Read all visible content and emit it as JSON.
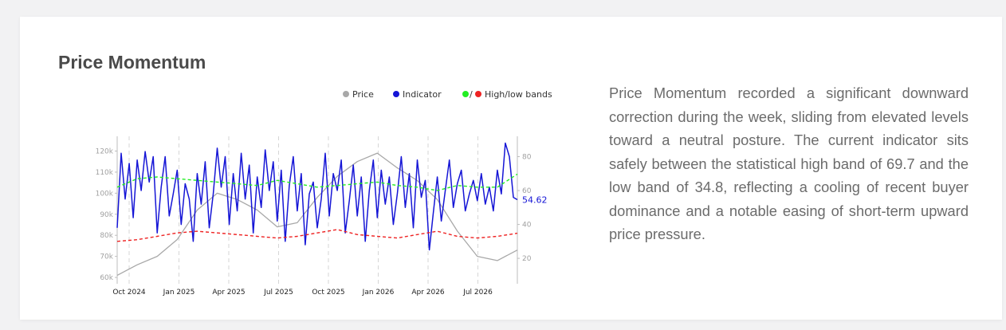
{
  "card": {
    "title": "Price Momentum",
    "description": "Price Momentum recorded a significant downward correction during the week, sliding from elevated levels toward a neutral posture. The current indicator sits safely between the statistical high band of 69.7 and the low band of 34.8, reflecting a cooling of recent buyer dominance and a notable easing of short-term upward price pressure."
  },
  "chart_data": {
    "type": "line",
    "legend": {
      "placement": "top-right",
      "items": [
        {
          "label": "Price",
          "color": "#a8a8a8"
        },
        {
          "label": "Indicator",
          "color": "#1515d6"
        },
        {
          "label": "High/low bands",
          "colors": [
            "#22ee22",
            "#ee2222"
          ]
        }
      ]
    },
    "x_ticks": [
      "Oct 2024",
      "Jan 2025",
      "Apr 2025",
      "Jul 2025",
      "Oct 2025",
      "Jan 2026",
      "Apr 2026",
      "Jul 2026"
    ],
    "y_left": {
      "ticks": [
        "60k",
        "70k",
        "80k",
        "90k",
        "100k",
        "110k",
        "120k"
      ],
      "values": [
        60000,
        70000,
        80000,
        90000,
        100000,
        110000,
        120000
      ],
      "range": [
        57000,
        127000
      ]
    },
    "y_right": {
      "ticks": [
        "20",
        "40",
        "60",
        "80"
      ],
      "values": [
        20,
        40,
        60,
        80
      ],
      "range": [
        5,
        92
      ]
    },
    "current_value_label": "54.62",
    "current_value": 54.62,
    "grid": "vertical-dashed",
    "colors": {
      "price": "#a8a8a8",
      "indicator": "#1515d6",
      "high_band": "#22ee22",
      "low_band": "#ee2222",
      "current_label": "#1515d6"
    },
    "series": [
      {
        "name": "Price",
        "axis": "left",
        "x": [
          0,
          5,
          10,
          15,
          20,
          25,
          30,
          35,
          40,
          45,
          50,
          55,
          60,
          65,
          70,
          75,
          80,
          85,
          90,
          95,
          100
        ],
        "values": [
          61000,
          66000,
          70000,
          78000,
          92000,
          100000,
          97000,
          92000,
          84000,
          86000,
          98000,
          108000,
          115000,
          119000,
          112000,
          106000,
          97000,
          82000,
          70000,
          68000,
          73000
        ]
      },
      {
        "name": "Indicator",
        "axis": "right",
        "x": [
          0,
          1,
          2,
          3,
          4,
          5,
          6,
          7,
          8,
          9,
          10,
          11,
          12,
          13,
          14,
          15,
          16,
          17,
          18,
          19,
          20,
          21,
          22,
          23,
          24,
          25,
          26,
          27,
          28,
          29,
          30,
          31,
          32,
          33,
          34,
          35,
          36,
          37,
          38,
          39,
          40,
          41,
          42,
          43,
          44,
          45,
          46,
          47,
          48,
          49,
          50,
          51,
          52,
          53,
          54,
          55,
          56,
          57,
          58,
          59,
          60,
          61,
          62,
          63,
          64,
          65,
          66,
          67,
          68,
          69,
          70,
          71,
          72,
          73,
          74,
          75,
          76,
          77,
          78,
          79,
          80,
          81,
          82,
          83,
          84,
          85,
          86,
          87,
          88,
          89,
          90,
          91,
          92,
          93,
          94,
          95,
          96,
          97,
          98,
          99,
          100
        ],
        "values": [
          38,
          82,
          55,
          76,
          44,
          78,
          60,
          83,
          65,
          80,
          35,
          62,
          80,
          45,
          58,
          72,
          40,
          64,
          55,
          30,
          70,
          52,
          77,
          38,
          58,
          85,
          62,
          80,
          40,
          70,
          48,
          82,
          55,
          75,
          35,
          68,
          50,
          84,
          60,
          77,
          42,
          72,
          30,
          63,
          80,
          48,
          70,
          28,
          58,
          65,
          38,
          55,
          82,
          45,
          70,
          60,
          78,
          35,
          54,
          75,
          45,
          68,
          30,
          60,
          78,
          44,
          72,
          52,
          68,
          40,
          58,
          80,
          50,
          70,
          38,
          78,
          56,
          66,
          25,
          47,
          68,
          42,
          60,
          78,
          50,
          64,
          72,
          48,
          58,
          66,
          54,
          70,
          52,
          62,
          48,
          72,
          58,
          88,
          80,
          56,
          54.62
        ]
      },
      {
        "name": "High band",
        "axis": "right",
        "x": [
          0,
          5,
          10,
          15,
          20,
          25,
          30,
          35,
          40,
          45,
          50,
          55,
          60,
          65,
          70,
          75,
          80,
          85,
          90,
          95,
          100
        ],
        "values": [
          62,
          67,
          68,
          67,
          66,
          65,
          64,
          63,
          66,
          64,
          62,
          63,
          64,
          65,
          63,
          62,
          60,
          63,
          62,
          62,
          69.7
        ]
      },
      {
        "name": "Low band",
        "axis": "right",
        "x": [
          0,
          5,
          10,
          15,
          20,
          25,
          30,
          35,
          40,
          45,
          50,
          55,
          60,
          65,
          70,
          75,
          80,
          85,
          90,
          95,
          100
        ],
        "values": [
          30,
          31,
          33,
          35,
          36,
          35,
          34,
          33,
          32,
          33,
          35,
          37,
          34,
          33,
          32,
          34,
          36,
          33,
          32,
          33,
          34.8
        ]
      }
    ]
  }
}
